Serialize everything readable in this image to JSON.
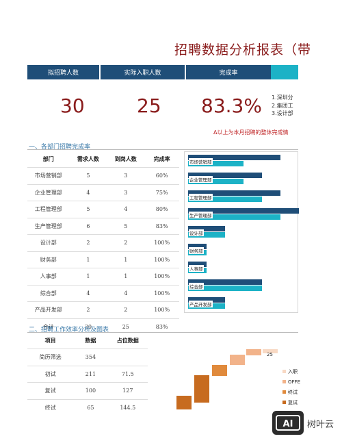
{
  "report": {
    "title": "招聘数据分析报表（带"
  },
  "kpi": {
    "headers": [
      "拟招聘人数",
      "实际入职人数",
      "完成率"
    ],
    "values": [
      "30",
      "25",
      "83.3%"
    ],
    "colors": {
      "dark": "#1f4e78",
      "light": "#1cb2c6"
    }
  },
  "notes": [
    "1.深圳分",
    "2.集团工",
    "3.设计部"
  ],
  "warning": "Δ以上为本月招聘的整体完成情",
  "section1": {
    "title": "一、各部门招聘完成率",
    "columns": [
      "部门",
      "需求人数",
      "到岗人数",
      "完成率"
    ],
    "rows": [
      [
        "市场营销部",
        "5",
        "3",
        "60%"
      ],
      [
        "企业管理部",
        "4",
        "3",
        "75%"
      ],
      [
        "工程管理部",
        "5",
        "4",
        "80%"
      ],
      [
        "生产管理部",
        "6",
        "5",
        "83%"
      ],
      [
        "设计部",
        "2",
        "2",
        "100%"
      ],
      [
        "财务部",
        "1",
        "1",
        "100%"
      ],
      [
        "人事部",
        "1",
        "1",
        "100%"
      ],
      [
        "综合部",
        "4",
        "4",
        "100%"
      ],
      [
        "产品开发部",
        "2",
        "2",
        "100%"
      ],
      [
        "合计",
        "30",
        "25",
        "83%"
      ]
    ]
  },
  "section2": {
    "title": "二、招聘工作效率分析及图表",
    "columns": [
      "项目",
      "数据",
      "占位数据"
    ],
    "rows": [
      [
        "简历筛选",
        "354",
        ""
      ],
      [
        "初试",
        "211",
        "71.5"
      ],
      [
        "复试",
        "100",
        "127"
      ],
      [
        "终试",
        "65",
        "144.5"
      ]
    ]
  },
  "chart_data": [
    {
      "type": "bar",
      "orientation": "horizontal",
      "categories": [
        "市场营销部",
        "企业管理部",
        "工程管理部",
        "生产管理部",
        "设计部",
        "财务部",
        "人事部",
        "综合部",
        "产品开发部"
      ],
      "series": [
        {
          "values": [
            5,
            4,
            5,
            6,
            2,
            1,
            1,
            4,
            2
          ],
          "color": "#1f4e78"
        },
        {
          "values": [
            3,
            3,
            4,
            5,
            2,
            1,
            1,
            4,
            2
          ],
          "color": "#1cb2c6"
        }
      ],
      "xlim": [
        0,
        6
      ]
    },
    {
      "type": "bar",
      "subtype": "waterfall",
      "series_colors": [
        "#c76b1f",
        "#e08a3c",
        "#f2b38a",
        "#f8d9c4"
      ],
      "visible_data_label": "25",
      "legend": [
        "入职",
        "OFFE",
        "终试",
        "复试"
      ],
      "legend_colors": [
        "#f8d9c4",
        "#f2b38a",
        "#e08a3c",
        "#c76b1f"
      ]
    }
  ],
  "watermark": {
    "text": "树叶云",
    "logo_letters": "AI"
  }
}
